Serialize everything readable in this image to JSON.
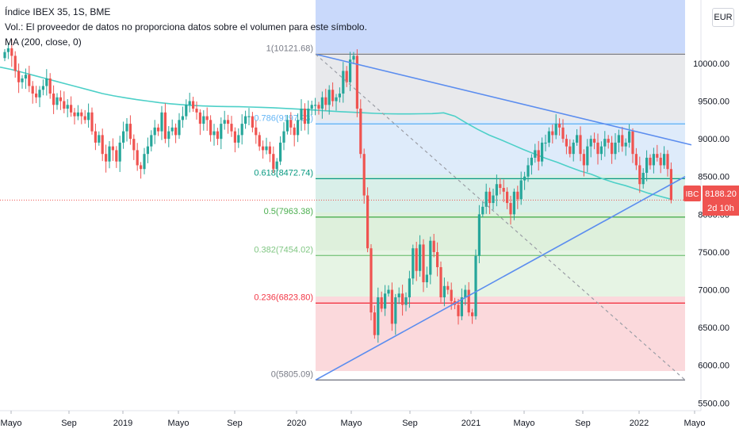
{
  "header": {
    "title": "Índice IBEX 35, 1S, BME",
    "volume_note": "Vol.: El proveedor de datos no proporciona datos sobre el volumen para este símbolo.",
    "indicator": "MA (200, close, 0)",
    "currency": "EUR"
  },
  "price_badge": {
    "symbol": "IBC",
    "price": "8188.20",
    "countdown": "2d 10h"
  },
  "colors": {
    "up": "#26a69a",
    "down": "#ef5350",
    "ma": "#4dd0c8",
    "trend": "#5b8def",
    "fib_0": "#787b86",
    "fib_236": "#f23645",
    "fib_382": "#81c784",
    "fib_5": "#4caf50",
    "fib_618": "#089981",
    "fib_786": "#64b5f6",
    "fib_1": "#787b86"
  },
  "chart_data": {
    "type": "candlestick",
    "x_ticks": [
      "Mayo",
      "Sep",
      "2019",
      "Mayo",
      "Sep",
      "2020",
      "Mayo",
      "Sep",
      "2021",
      "Mayo",
      "Sep",
      "2022",
      "Mayo"
    ],
    "y_ticks": [
      "5500.00",
      "6000.00",
      "6500.00",
      "7000.00",
      "7500.00",
      "8000.00",
      "8500.00",
      "9000.00",
      "9500.00",
      "10000.00"
    ],
    "ylim": [
      5350,
      10750
    ],
    "fib_levels": [
      {
        "ratio": 1,
        "value": 10121.68,
        "label": "1(10121.68)"
      },
      {
        "ratio": 0.786,
        "value": 9197.93,
        "label": "0.786(9197.93)"
      },
      {
        "ratio": 0.618,
        "value": 8472.74,
        "label": "0.618(8472.74)"
      },
      {
        "ratio": 0.5,
        "value": 7963.38,
        "label": "0.5(7963.38)"
      },
      {
        "ratio": 0.382,
        "value": 7454.02,
        "label": "0.382(7454.02)"
      },
      {
        "ratio": 0.236,
        "value": 6823.8,
        "label": "0.236(6823.80)"
      },
      {
        "ratio": 0,
        "value": 5805.09,
        "label": "0(5805.09)"
      }
    ],
    "last_price": 8188.2,
    "close_series": [
      10150,
      10200,
      10100,
      9900,
      9750,
      9800,
      9850,
      9700,
      9600,
      9550,
      9650,
      9700,
      9800,
      9600,
      9450,
      9550,
      9500,
      9400,
      9450,
      9350,
      9300,
      9350,
      9300,
      9250,
      9350,
      9100,
      8950,
      9050,
      8800,
      8700,
      8900,
      8850,
      8700,
      8950,
      9100,
      9200,
      9000,
      8850,
      8650,
      8600,
      8800,
      8900,
      9050,
      9150,
      9100,
      9350,
      9000,
      9100,
      9150,
      9050,
      9250,
      9300,
      9450,
      9500,
      9400,
      9350,
      9200,
      9300,
      9250,
      9050,
      9100,
      9000,
      9200,
      9250,
      9200,
      9100,
      8950,
      9050,
      9200,
      9300,
      9300,
      9150,
      9050,
      8900,
      8850,
      8900,
      8800,
      8600,
      8700,
      8950,
      9100,
      9250,
      9150,
      9050,
      9250,
      9400,
      9200,
      9400,
      9450,
      9450,
      9400,
      9550,
      9450,
      9650,
      9500,
      9550,
      9600,
      9900,
      9750,
      10050,
      10100,
      9400,
      8800,
      8250,
      7550,
      6700,
      6400,
      6900,
      6750,
      6950,
      7000,
      6550,
      6900,
      6950,
      6800,
      6900,
      7150,
      7550,
      7250,
      7600,
      7100,
      7200,
      7650,
      7500,
      7300,
      6900,
      7050,
      7000,
      6850,
      6800,
      6650,
      6900,
      7000,
      6700,
      6650,
      7450,
      8000,
      8100,
      8300,
      8150,
      8250,
      8400,
      8350,
      8300,
      8150,
      8000,
      8300,
      8200,
      8450,
      8500,
      8650,
      8750,
      8850,
      8700,
      8950,
      8950,
      9100,
      9050,
      9200,
      9150,
      9000,
      8900,
      8800,
      8950,
      9050,
      8800,
      8650,
      8900,
      9000,
      8950,
      8800,
      8900,
      9000,
      8950,
      8800,
      8950,
      9050,
      8900,
      8950,
      9100,
      8800,
      8650,
      8400,
      8550,
      8750,
      8650,
      8800,
      8750,
      8650,
      8800,
      8600,
      8188.2
    ],
    "ma_200": [
      9950,
      9920,
      9880,
      9840,
      9800,
      9760,
      9720,
      9680,
      9640,
      9600,
      9570,
      9545,
      9520,
      9500,
      9480,
      9465,
      9452,
      9442,
      9435,
      9430,
      9428,
      9426,
      9422,
      9418,
      9412,
      9404,
      9396,
      9388,
      9378,
      9368,
      9360,
      9352,
      9345,
      9338,
      9332,
      9330,
      9330,
      9332,
      9335,
      9345,
      9300,
      9210,
      9125,
      9050,
      8990,
      8925,
      8860,
      8800,
      8740,
      8690,
      8630,
      8575,
      8530,
      8470,
      8420,
      8380,
      8330,
      8280,
      8240,
      8200
    ],
    "trendlines": [
      {
        "name": "upper",
        "from": [
          20.5,
          10121.68
        ],
        "to": [
          42.5,
          8920
        ]
      },
      {
        "name": "lower",
        "from": [
          20.5,
          5805.09
        ],
        "to": [
          42.5,
          8500
        ]
      },
      {
        "name": "diagonal",
        "from": [
          20.5,
          10121.68
        ],
        "to": [
          42.3,
          5805.09
        ]
      }
    ]
  }
}
